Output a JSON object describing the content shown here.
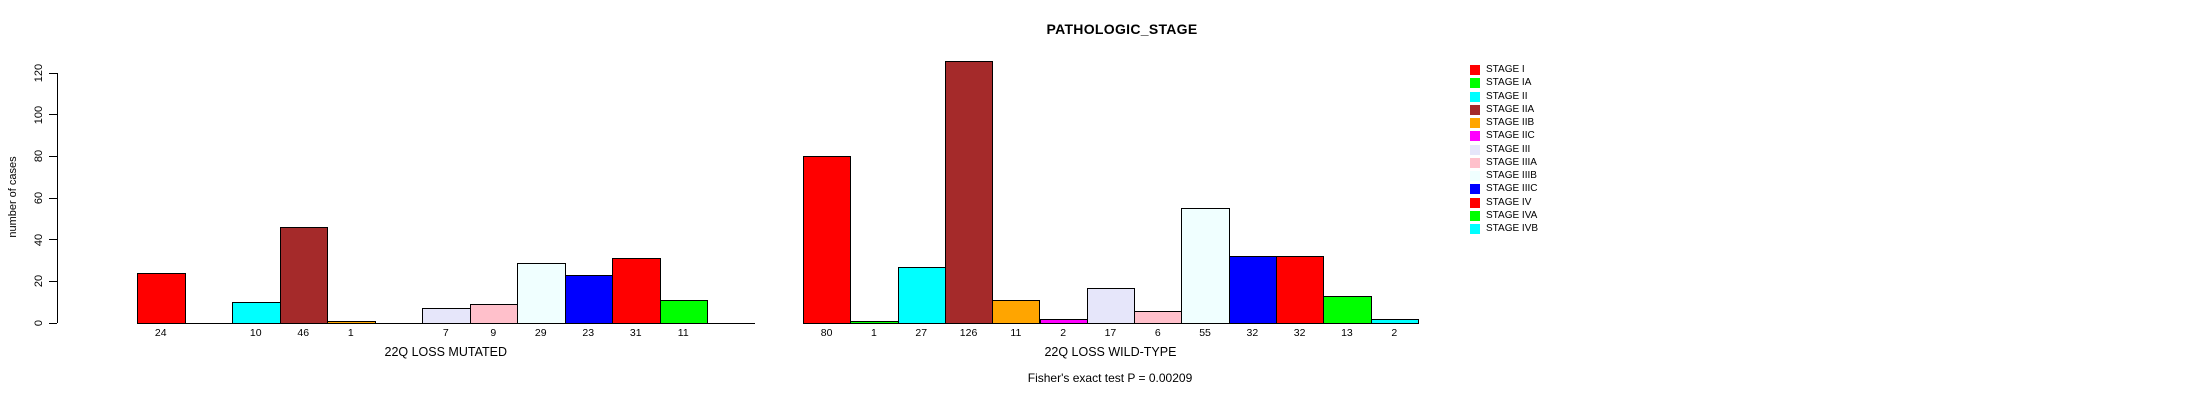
{
  "title": "PATHOLOGIC_STAGE",
  "ylabel": "number of cases",
  "footer": "Fisher's exact test P = 0.00209",
  "y_ticks": [
    0,
    20,
    40,
    60,
    80,
    100,
    120
  ],
  "legend": {
    "position": "right",
    "entries": [
      {
        "label": "STAGE I",
        "color": "#FF0000"
      },
      {
        "label": "STAGE IA",
        "color": "#00FF00"
      },
      {
        "label": "STAGE II",
        "color": "#00FFFF"
      },
      {
        "label": "STAGE IIA",
        "color": "#A52A2A"
      },
      {
        "label": "STAGE IIB",
        "color": "#FFA500"
      },
      {
        "label": "STAGE IIC",
        "color": "#FF00FF"
      },
      {
        "label": "STAGE III",
        "color": "#E6E6FA"
      },
      {
        "label": "STAGE IIIA",
        "color": "#FFC0CB"
      },
      {
        "label": "STAGE IIIB",
        "color": "#F0FFFF"
      },
      {
        "label": "STAGE IIIC",
        "color": "#0000FF"
      },
      {
        "label": "STAGE IV",
        "color": "#FF0000"
      },
      {
        "label": "STAGE IVA",
        "color": "#00FF00"
      },
      {
        "label": "STAGE IVB",
        "color": "#00FFFF"
      }
    ]
  },
  "chart_data": {
    "type": "bar",
    "title": "PATHOLOGIC_STAGE",
    "xlabel": "",
    "ylabel": "number of cases",
    "ylim": [
      0,
      126
    ],
    "y_tick_values": [
      0,
      20,
      40,
      60,
      80,
      100,
      120
    ],
    "grid": false,
    "legend_position": "right",
    "categories": [
      "STAGE I",
      "STAGE IA",
      "STAGE II",
      "STAGE IIA",
      "STAGE IIB",
      "STAGE IIC",
      "STAGE III",
      "STAGE IIIA",
      "STAGE IIIB",
      "STAGE IIIC",
      "STAGE IV",
      "STAGE IVA",
      "STAGE IVB"
    ],
    "colors": [
      "#FF0000",
      "#00FF00",
      "#00FFFF",
      "#A52A2A",
      "#FFA500",
      "#FF00FF",
      "#E6E6FA",
      "#FFC0CB",
      "#F0FFFF",
      "#0000FF",
      "#FF0000",
      "#00FF00",
      "#00FFFF"
    ],
    "series": [
      {
        "name": "22Q LOSS MUTATED",
        "values": [
          24,
          0,
          10,
          46,
          1,
          0,
          7,
          9,
          29,
          23,
          31,
          11,
          0
        ]
      },
      {
        "name": "22Q LOSS WILD-TYPE",
        "values": [
          80,
          1,
          27,
          126,
          11,
          2,
          17,
          6,
          55,
          32,
          32,
          13,
          2
        ]
      }
    ],
    "bar_value_labels_shown_only_for_nonzero": true,
    "annotation": "Fisher's exact test P = 0.00209"
  }
}
